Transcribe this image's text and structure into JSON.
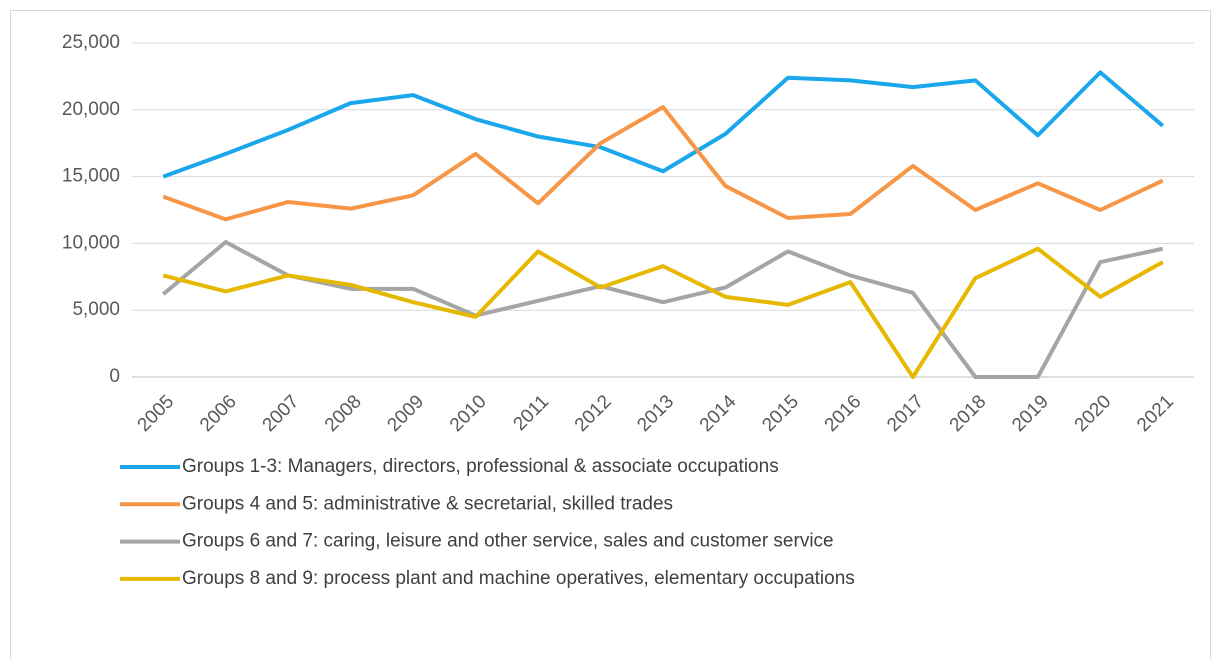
{
  "chart_data": {
    "type": "line",
    "categories": [
      "2005",
      "2006",
      "2007",
      "2008",
      "2009",
      "2010",
      "2011",
      "2012",
      "2013",
      "2014",
      "2015",
      "2016",
      "2017",
      "2018",
      "2019",
      "2020",
      "2021"
    ],
    "series": [
      {
        "name": "Groups 1-3: Managers, directors, professional & associate occupations",
        "color": "#1aa7ec",
        "values": [
          15000,
          16700,
          18500,
          20500,
          21100,
          19300,
          18000,
          17200,
          15400,
          18200,
          22400,
          22200,
          21700,
          22200,
          18100,
          22800,
          18800
        ]
      },
      {
        "name": "Groups 4 and 5: administrative & secretarial, skilled trades",
        "color": "#f79646",
        "values": [
          13500,
          11800,
          13100,
          12600,
          13600,
          16700,
          13000,
          17500,
          20200,
          14300,
          11900,
          12200,
          15800,
          12500,
          14500,
          12500,
          14700
        ]
      },
      {
        "name": "Groups 6 and 7: caring, leisure and other service, sales and customer service",
        "color": "#a5a5a5",
        "values": [
          6200,
          10100,
          7600,
          6600,
          6600,
          4600,
          5700,
          6800,
          5600,
          6700,
          9400,
          7600,
          6300,
          0,
          0,
          8600,
          9600
        ]
      },
      {
        "name": "Groups 8 and 9: process plant and machine operatives, elementary occupations",
        "color": "#e6b800",
        "values": [
          7600,
          6400,
          7600,
          6900,
          5600,
          4500,
          9400,
          6700,
          8300,
          6000,
          5400,
          7100,
          0,
          7400,
          9600,
          6000,
          8600
        ]
      }
    ],
    "ylim": [
      0,
      25000
    ],
    "yticks": [
      0,
      {
        "value": 5000,
        "label": "5,000"
      },
      {
        "value": 10000,
        "label": "10,000"
      },
      {
        "value": 15000,
        "label": "15,000"
      },
      {
        "value": 20000,
        "label": "20,000"
      },
      {
        "value": 25000,
        "label": "25,000"
      }
    ],
    "grid": true,
    "legend": "bottom"
  }
}
